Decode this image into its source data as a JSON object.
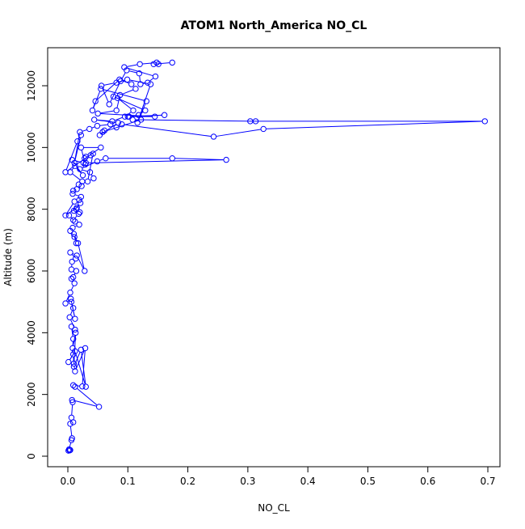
{
  "chart_data": {
    "type": "line",
    "title": "ATOM1 North_America NO_CL",
    "xlabel": "NO_CL",
    "ylabel": "Altitude (m)",
    "xlim": [
      -0.03,
      0.72
    ],
    "ylim": [
      -500,
      13000
    ],
    "x_ticks": [
      0.0,
      0.1,
      0.2,
      0.3,
      0.4,
      0.5,
      0.6,
      0.7
    ],
    "x_tick_labels": [
      "0.0",
      "0.1",
      "0.2",
      "0.3",
      "0.4",
      "0.5",
      "0.6",
      "0.7"
    ],
    "y_ticks": [
      0,
      2000,
      4000,
      6000,
      8000,
      10000,
      12000
    ],
    "y_tick_labels": [
      "0",
      "2000",
      "4000",
      "6000",
      "8000",
      "10000",
      "12000"
    ],
    "grid": false,
    "legend": "none",
    "marker": "open-circle",
    "series": [
      {
        "color": "#0000ff",
        "x": [
          0.001,
          0.003,
          0.004,
          0.002,
          0.006,
          0.007,
          0.004,
          0.009,
          0.006,
          0.008,
          0.007,
          0.052,
          0.012,
          0.009,
          0.024,
          0.029,
          0.012,
          0.01,
          0.009,
          0.001,
          0.012,
          0.03,
          0.022,
          0.01,
          0.013,
          0.008,
          0.009,
          0.006,
          0.012,
          0.003,
          0.009,
          0.006,
          0.012,
          0.005,
          -0.004,
          0.004,
          0.011,
          0.006,
          0.009,
          0.014,
          0.006,
          0.007,
          0.013,
          0.004,
          0.015,
          0.028,
          0.017,
          0.01,
          0.014,
          0.011,
          0.004,
          0.008,
          0.019,
          0.012,
          0.002,
          0.009,
          0.018,
          0.02,
          0.014,
          0.021,
          0.01,
          0.015,
          -0.004,
          0.011,
          0.019,
          0.022,
          0.008,
          0.009,
          0.015,
          0.023,
          0.018,
          0.024,
          0.004,
          0.012,
          0.025,
          0.007,
          0.026,
          0.028,
          0.03,
          0.038,
          0.042,
          0.033,
          0.043,
          0.037,
          0.02,
          0.049,
          0.063,
          0.174,
          0.264,
          0.03,
          0.029,
          0.022,
          0.055,
          -0.004,
          0.016,
          0.022,
          0.011,
          0.02,
          0.036,
          0.049,
          0.071,
          0.081,
          0.09,
          0.243,
          0.326,
          0.695,
          0.304,
          0.313,
          0.108,
          0.122,
          0.058,
          0.061,
          0.053,
          0.084,
          0.044,
          0.074,
          0.095,
          0.109,
          0.083,
          0.076,
          0.129,
          0.118,
          0.102,
          0.161,
          0.1,
          0.145,
          0.05,
          0.081,
          0.087,
          0.113,
          0.106,
          0.086,
          0.046,
          0.041,
          0.055,
          0.131,
          0.116,
          0.138,
          0.099,
          0.081,
          0.056,
          0.069,
          0.088,
          0.098,
          0.119,
          0.121,
          0.133,
          0.146,
          0.094,
          0.12,
          0.148,
          0.151,
          0.143,
          0.174
        ]
      }
    ],
    "y_values": [
      180,
      190,
      200,
      220,
      520,
      580,
      1050,
      1100,
      1250,
      1750,
      1820,
      1600,
      2250,
      2300,
      2260,
      3500,
      2750,
      3000,
      3300,
      3050,
      3400,
      2250,
      3450,
      2900,
      4000,
      3500,
      3800,
      4200,
      4100,
      4500,
      4800,
      5000,
      4450,
      5100,
      4950,
      5300,
      5600,
      5750,
      5800,
      6000,
      6050,
      6300,
      6400,
      6600,
      6500,
      6000,
      6900,
      7200,
      6900,
      7100,
      7300,
      7400,
      7500,
      7600,
      7800,
      7650,
      7850,
      7900,
      8000,
      8200,
      7950,
      8050,
      7800,
      8250,
      8300,
      8400,
      8500,
      8600,
      8650,
      8750,
      8800,
      8900,
      9200,
      9400,
      9100,
      9600,
      9500,
      9650,
      9700,
      9750,
      9800,
      8900,
      9000,
      9200,
      9300,
      9550,
      9650,
      9650,
      9600,
      9500,
      9450,
      10000,
      10000,
      9200,
      10200,
      10400,
      9500,
      10500,
      10600,
      10700,
      10750,
      10650,
      10750,
      10350,
      10600,
      10850,
      10850,
      10850,
      10900,
      10900,
      10500,
      10550,
      10400,
      10800,
      10900,
      10850,
      11000,
      11200,
      11600,
      11650,
      11200,
      11050,
      11000,
      11050,
      11000,
      11000,
      11100,
      11200,
      11700,
      11900,
      12050,
      12200,
      11500,
      11200,
      11900,
      11500,
      10800,
      12050,
      12200,
      12100,
      12000,
      11400,
      12150,
      12500,
      12400,
      12050,
      12100,
      12300,
      12600,
      12700,
      12750,
      12700,
      12700,
      12750
    ]
  }
}
